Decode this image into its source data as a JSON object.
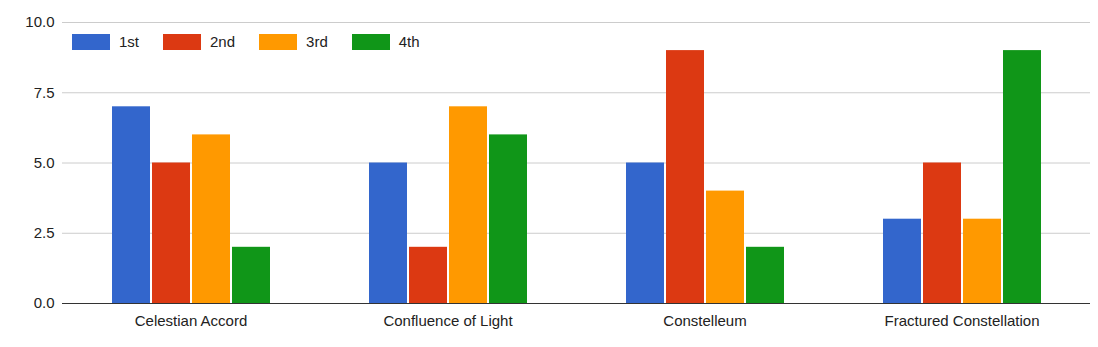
{
  "chart_data": {
    "type": "bar",
    "categories": [
      "Celestian Accord",
      "Confluence of Light",
      "Constelleum",
      "Fractured Constellation"
    ],
    "series": [
      {
        "name": "1st",
        "color": "#3366cc",
        "values": [
          7,
          5,
          5,
          3
        ]
      },
      {
        "name": "2nd",
        "color": "#dc3912",
        "values": [
          5,
          2,
          9,
          5
        ]
      },
      {
        "name": "3rd",
        "color": "#ff9900",
        "values": [
          6,
          7,
          4,
          3
        ]
      },
      {
        "name": "4th",
        "color": "#109618",
        "values": [
          2,
          6,
          2,
          9
        ]
      }
    ],
    "ylim": [
      0,
      10
    ],
    "yticks": [
      {
        "value": 0,
        "label": "0.0"
      },
      {
        "value": 2.5,
        "label": "2.5"
      },
      {
        "value": 5,
        "label": "5.0"
      },
      {
        "value": 7.5,
        "label": "7.5"
      },
      {
        "value": 10,
        "label": "10.0"
      }
    ],
    "grid": true,
    "legend": "top-left"
  }
}
